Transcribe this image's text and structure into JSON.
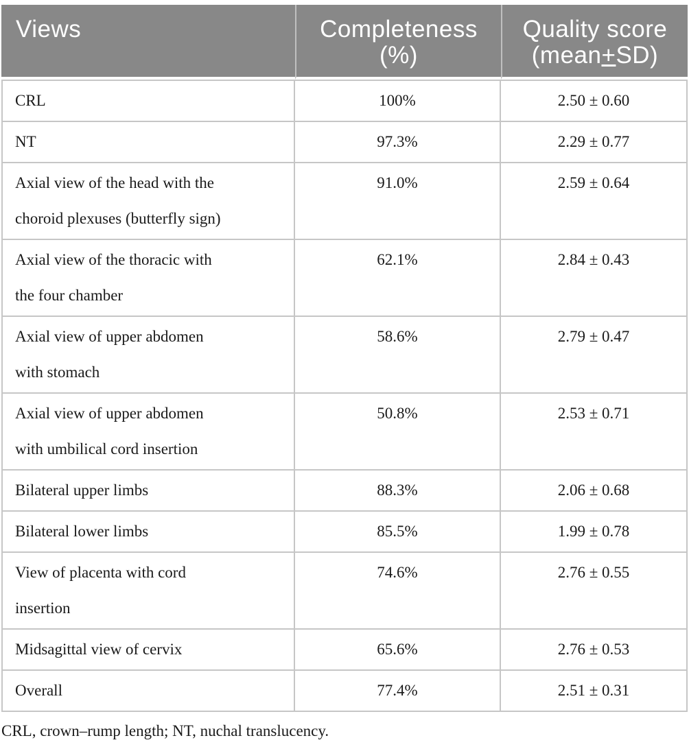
{
  "colors": {
    "header_bg": "#888888",
    "header_text": "#ffffff",
    "header_divider": "#c0c0c0",
    "body_border": "#c6c6c6",
    "body_text": "#1a1a1a"
  },
  "table": {
    "header": {
      "views": "Views",
      "completeness_line1": "Completeness",
      "completeness_line2": "(%)",
      "quality_line1": "Quality score",
      "quality_line2_prefix": "(mean",
      "quality_line2_plus": "+",
      "quality_line2_suffix": "SD)"
    },
    "rows": [
      {
        "view_lines": [
          "CRL"
        ],
        "completeness": "100%",
        "quality": "2.50 ± 0.60"
      },
      {
        "view_lines": [
          "NT"
        ],
        "completeness": "97.3%",
        "quality": "2.29 ± 0.77"
      },
      {
        "view_lines": [
          "Axial view of the head with the",
          "choroid plexuses (butterfly sign)"
        ],
        "completeness": "91.0%",
        "quality": "2.59 ± 0.64"
      },
      {
        "view_lines": [
          "Axial view of the thoracic with",
          "the four chamber"
        ],
        "completeness": "62.1%",
        "quality": "2.84 ± 0.43"
      },
      {
        "view_lines": [
          "Axial view of upper abdomen",
          "with stomach"
        ],
        "completeness": "58.6%",
        "quality": "2.79 ± 0.47"
      },
      {
        "view_lines": [
          "Axial view of upper abdomen",
          "with umbilical cord insertion"
        ],
        "completeness": "50.8%",
        "quality": "2.53 ± 0.71"
      },
      {
        "view_lines": [
          "Bilateral upper limbs"
        ],
        "completeness": "88.3%",
        "quality": "2.06 ± 0.68"
      },
      {
        "view_lines": [
          "Bilateral lower limbs"
        ],
        "completeness": "85.5%",
        "quality": "1.99 ± 0.78"
      },
      {
        "view_lines": [
          "View of placenta with cord",
          "insertion"
        ],
        "completeness": "74.6%",
        "quality": "2.76 ± 0.55"
      },
      {
        "view_lines": [
          "Midsagittal view of cervix"
        ],
        "completeness": "65.6%",
        "quality": "2.76 ± 0.53"
      },
      {
        "view_lines": [
          "Overall"
        ],
        "completeness": "77.4%",
        "quality": "2.51 ± 0.31"
      }
    ],
    "footnote": "CRL, crown–rump length; NT, nuchal translucency."
  }
}
